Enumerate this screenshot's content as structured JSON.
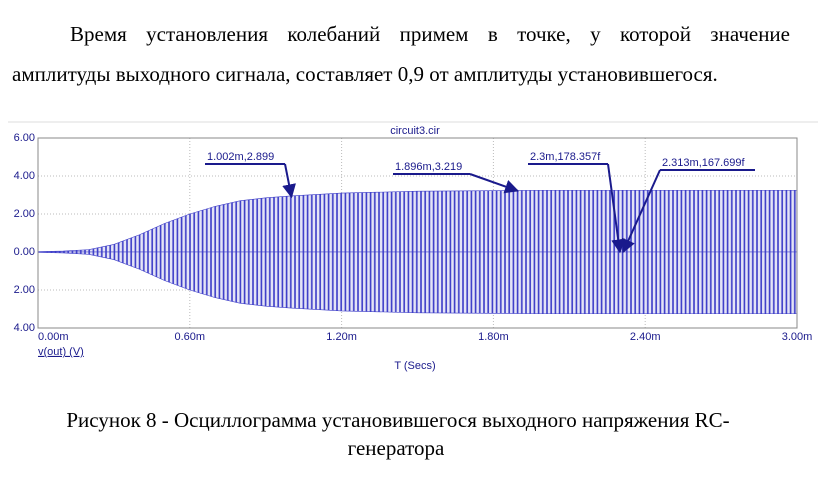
{
  "document": {
    "paragraph_lines": [
      "Время установления колебаний примем в точке, у которой значение",
      "амплитуды выходного сигнала, составляет 0,9 от амплитуды установившегося."
    ],
    "caption_lines": [
      "Рисунок 8 - Осциллограмма установившегося выходного напряжения RC-",
      "генератора"
    ]
  },
  "chart_data": {
    "type": "area",
    "title": "circuit3.cir",
    "x_label": "T (Secs)",
    "x": [
      0,
      0.1,
      0.2,
      0.3,
      0.4,
      0.5,
      0.6,
      0.7,
      0.8,
      0.9,
      1.0,
      1.2,
      1.5,
      2.0,
      2.5,
      3.0
    ],
    "series": [
      {
        "name": "v(out) (V)",
        "color": "#3c3cc8",
        "values": [
          0.02,
          0.05,
          0.12,
          0.4,
          0.9,
          1.5,
          2.0,
          2.4,
          2.7,
          2.85,
          2.95,
          3.1,
          3.2,
          3.25,
          3.25,
          3.25
        ],
        "lower": [
          -0.02,
          -0.05,
          -0.12,
          -0.4,
          -0.9,
          -1.5,
          -2.0,
          -2.4,
          -2.7,
          -2.85,
          -2.95,
          -3.1,
          -3.2,
          -3.25,
          -3.25,
          -3.25
        ]
      }
    ],
    "xlim": [
      0,
      3
    ],
    "ylim": [
      -4,
      6
    ],
    "xticks": [
      {
        "value": 0,
        "label": "0.00m"
      },
      {
        "value": 0.6,
        "label": "0.60m"
      },
      {
        "value": 1.2,
        "label": "1.20m"
      },
      {
        "value": 1.8,
        "label": "1.80m"
      },
      {
        "value": 2.4,
        "label": "2.40m"
      },
      {
        "value": 3,
        "label": "3.00m"
      }
    ],
    "yticks": [
      {
        "value": -4,
        "label": "4.00"
      },
      {
        "value": -2,
        "label": "2.00"
      },
      {
        "value": 0,
        "label": "0.00"
      },
      {
        "value": 2,
        "label": "2.00"
      },
      {
        "value": 4,
        "label": "4.00"
      },
      {
        "value": 6,
        "label": "6.00"
      }
    ],
    "grid": true,
    "annotations": [
      {
        "text": "1.002m,2.899",
        "x": 1.002,
        "y": 2.899
      },
      {
        "text": "1.896m,3.219",
        "x": 1.896,
        "y": 3.219
      },
      {
        "text": "2.3m,178.357f",
        "x": 2.3,
        "y": 0
      },
      {
        "text": "2.313m,167.699f",
        "x": 2.313,
        "y": 0
      }
    ]
  }
}
